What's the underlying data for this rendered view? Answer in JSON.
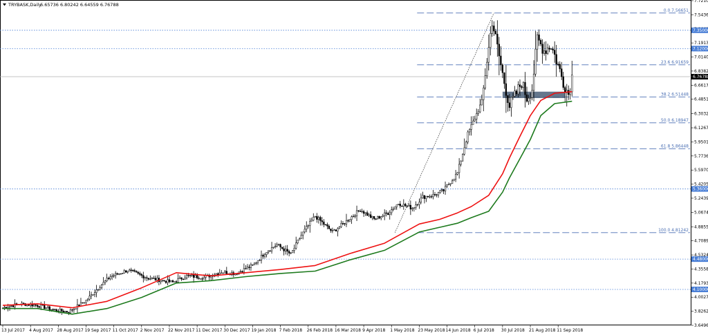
{
  "header": {
    "symbol_label": "TRYBASK,Daily",
    "ohlc_label": "6.65736 6.80242 6.64559 6.76788"
  },
  "colors": {
    "ma_fast": "#ee1111",
    "ma_slow": "#1d7a1d",
    "level_line": "#4a7fd6",
    "fib_line": "#4a6fb3",
    "label_bg": "#4a7fd6",
    "current_price_bg": "#000000",
    "zone_fill": "#4a5f78"
  },
  "chart_data": {
    "type": "candlestick",
    "title": "TRYBASK,Daily",
    "ylim": [
      3.64965,
      7.721
    ],
    "y_tick_labels": [
      "7.72100",
      "7.54365",
      "7.36630",
      "7.19135",
      "7.01405",
      "6.83825",
      "6.66170",
      "6.48515",
      "6.30325",
      "6.12670",
      "5.95015",
      "5.77360",
      "5.59705",
      "5.42050",
      "5.24395",
      "5.06740",
      "4.88550",
      "4.70895",
      "4.53240",
      "4.35585",
      "4.17930",
      "4.00275",
      "3.82620",
      "3.64965"
    ],
    "x_tick_labels": [
      "13 Jul 2017",
      "4 Aug 2017",
      "28 Aug 2017",
      "19 Sep 2017",
      "11 Oct 2017",
      "2 Nov 2017",
      "22 Nov 2017",
      "11 Dec 2017",
      "30 Dec 2017",
      "19 Jan 2018",
      "7 Feb 2018",
      "26 Feb 2018",
      "16 Mar 2018",
      "9 Apr 2018",
      "1 May 2018",
      "23 May 2018",
      "14 Jun 2018",
      "6 Jul 2018",
      "30 Jul 2018",
      "21 Aug 2018",
      "11 Sep 2018"
    ],
    "x_tick_values": [
      0,
      16,
      32,
      48,
      64,
      80,
      96,
      112,
      128,
      144,
      160,
      176,
      192,
      208,
      224,
      240,
      256,
      272,
      288,
      304,
      320
    ],
    "close_anchor_index": [
      0,
      10,
      20,
      30,
      38,
      48,
      56,
      62,
      72,
      84,
      98,
      106,
      116,
      126,
      134,
      144,
      152,
      158,
      166,
      172,
      180,
      190,
      196,
      206,
      214,
      222,
      228,
      236,
      242,
      248,
      254,
      262,
      268,
      276,
      282,
      288,
      292,
      296,
      299,
      302,
      305,
      308,
      312,
      316,
      320,
      323,
      326,
      328
    ],
    "close_anchor_value": [
      3.87,
      3.92,
      3.9,
      3.84,
      3.82,
      3.96,
      4.14,
      4.26,
      4.34,
      4.24,
      4.19,
      4.27,
      4.25,
      4.32,
      4.3,
      4.4,
      4.58,
      4.66,
      4.54,
      4.78,
      5.02,
      4.82,
      4.92,
      5.1,
      4.98,
      5.06,
      5.18,
      5.12,
      5.26,
      5.28,
      5.34,
      5.56,
      6.05,
      6.45,
      7.47,
      6.8,
      6.4,
      6.56,
      6.7,
      6.5,
      6.62,
      7.24,
      7.1,
      7.16,
      6.91,
      6.7,
      6.55,
      6.77
    ],
    "series": [
      {
        "name": "MA fast",
        "color": "#ee1111",
        "x": [
          0,
          20,
          40,
          60,
          80,
          100,
          120,
          140,
          160,
          180,
          200,
          220,
          240,
          252,
          262,
          270,
          280,
          288,
          292,
          298,
          304,
          310,
          318,
          328
        ],
        "values": [
          3.9,
          3.92,
          3.87,
          3.95,
          4.12,
          4.31,
          4.27,
          4.31,
          4.35,
          4.4,
          4.55,
          4.68,
          4.92,
          4.98,
          5.06,
          5.14,
          5.28,
          5.55,
          5.75,
          6.02,
          6.28,
          6.47,
          6.56,
          6.58
        ]
      },
      {
        "name": "MA slow",
        "color": "#1d7a1d",
        "x": [
          0,
          20,
          40,
          60,
          80,
          100,
          120,
          140,
          160,
          180,
          200,
          220,
          240,
          252,
          262,
          270,
          280,
          288,
          292,
          298,
          304,
          310,
          318,
          328
        ],
        "values": [
          3.86,
          3.86,
          3.79,
          3.86,
          4.0,
          4.18,
          4.21,
          4.26,
          4.3,
          4.33,
          4.47,
          4.59,
          4.82,
          4.88,
          4.93,
          5.0,
          5.08,
          5.32,
          5.5,
          5.74,
          5.98,
          6.28,
          6.43,
          6.46
        ]
      }
    ],
    "horizontal_levels": [
      {
        "label": "7.35000",
        "value": 7.35
      },
      {
        "label": "7.12000",
        "value": 7.12
      },
      {
        "label": "5.36000",
        "value": 5.36
      },
      {
        "label": "4.48000",
        "value": 4.48
      },
      {
        "label": "4.10000",
        "value": 4.1
      }
    ],
    "current_price": {
      "label": "6.76788",
      "value": 6.76788
    },
    "fibonacci": {
      "levels": [
        {
          "label": "0.0 7.56651",
          "value": 7.56651
        },
        {
          "label": "23.6 6.91659",
          "value": 6.91659
        },
        {
          "label": "38.2 6.51448",
          "value": 6.51448
        },
        {
          "label": "50.0 6.18947",
          "value": 6.18947
        },
        {
          "label": "61.8 5.86448",
          "value": 5.86448
        },
        {
          "label": "100.0 4.81242",
          "value": 4.81242
        }
      ],
      "trend_from": {
        "x": 226,
        "value": 4.81242
      },
      "trend_to": {
        "x": 283,
        "value": 7.56651
      }
    },
    "zone": {
      "x_start": 288,
      "x_end": 324,
      "value_low": 6.5,
      "value_high": 6.58
    },
    "grid": false
  }
}
